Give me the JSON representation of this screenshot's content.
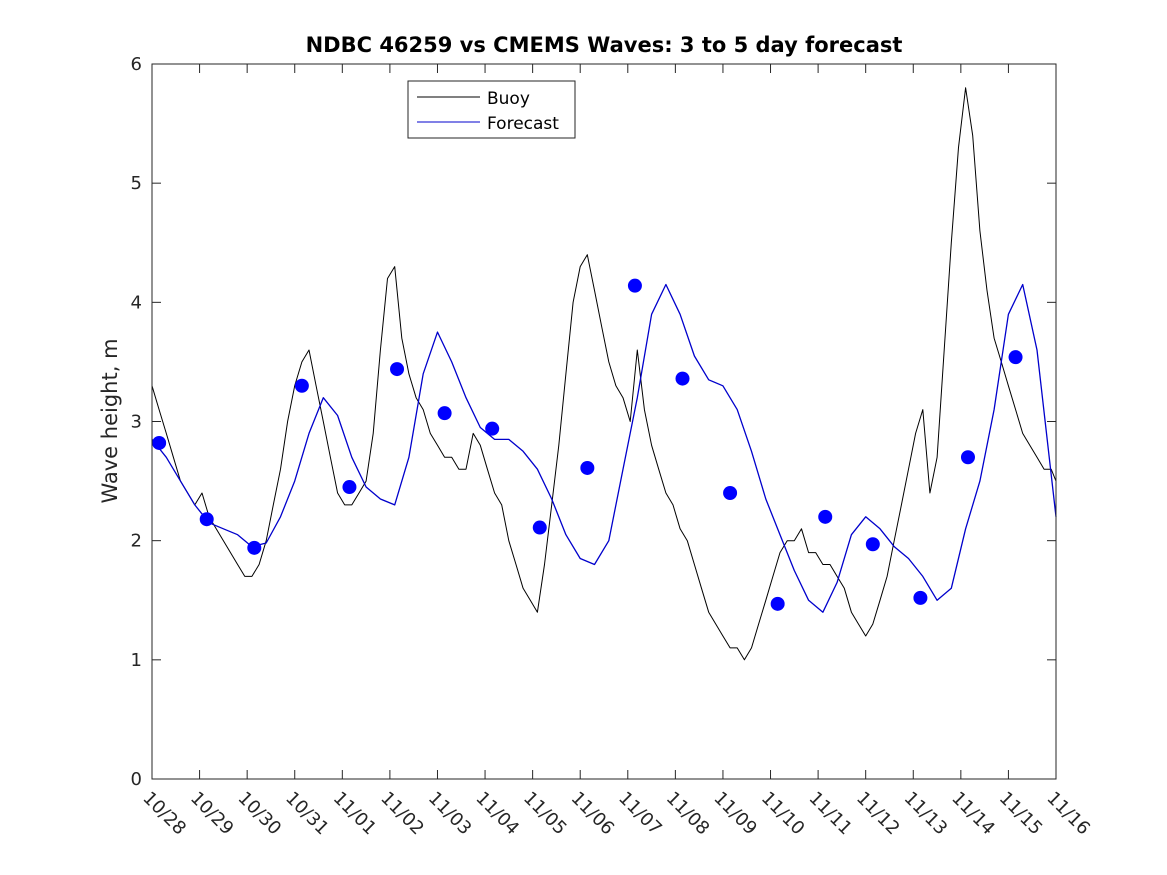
{
  "chart_data": {
    "type": "line",
    "title": "NDBC 46259 vs CMEMS Waves: 3 to 5 day forecast",
    "xlabel": "",
    "ylabel": "Wave height, m",
    "ylim": [
      0,
      6
    ],
    "xlim": [
      0,
      19
    ],
    "yticks": [
      "0",
      "1",
      "2",
      "3",
      "4",
      "5",
      "6"
    ],
    "xtick_labels": [
      "10/28",
      "10/29",
      "10/30",
      "10/31",
      "11/01",
      "11/02",
      "11/03",
      "11/04",
      "11/05",
      "11/06",
      "11/07",
      "11/08",
      "11/09",
      "11/10",
      "11/11",
      "11/12",
      "11/13",
      "11/14",
      "11/15",
      "11/16"
    ],
    "legend": {
      "location": "top-center",
      "entries": [
        {
          "label": "Buoy",
          "color": "#000000"
        },
        {
          "label": "Forecast",
          "color": "#0000cc"
        }
      ]
    },
    "series": [
      {
        "name": "Buoy",
        "color": "#000000",
        "x": [
          0,
          0.15,
          0.3,
          0.45,
          0.6,
          0.75,
          0.9,
          1.05,
          1.2,
          1.35,
          1.5,
          1.65,
          1.8,
          1.95,
          2.1,
          2.25,
          2.4,
          2.55,
          2.7,
          2.85,
          3.0,
          3.15,
          3.3,
          3.45,
          3.6,
          3.75,
          3.9,
          4.05,
          4.2,
          4.35,
          4.5,
          4.65,
          4.8,
          4.95,
          5.1,
          5.25,
          5.4,
          5.55,
          5.7,
          5.85,
          6.0,
          6.15,
          6.3,
          6.45,
          6.6,
          6.75,
          6.9,
          7.05,
          7.2,
          7.35,
          7.5,
          7.65,
          7.8,
          7.95,
          8.1,
          8.25,
          8.4,
          8.55,
          8.7,
          8.85,
          9.0,
          9.15,
          9.3,
          9.45,
          9.6,
          9.75,
          9.9,
          10.05,
          10.2,
          10.35,
          10.5,
          10.65,
          10.8,
          10.95,
          11.1,
          11.25,
          11.4,
          11.55,
          11.7,
          11.85,
          12.0,
          12.15,
          12.3,
          12.45,
          12.6,
          12.75,
          12.9,
          13.05,
          13.2,
          13.35,
          13.5,
          13.65,
          13.8,
          13.95,
          14.1,
          14.25,
          14.4,
          14.55,
          14.7,
          14.85,
          15.0,
          15.15,
          15.3,
          15.45,
          15.6,
          15.75,
          15.9,
          16.05,
          16.2,
          16.35,
          16.5,
          16.65,
          16.8,
          16.95,
          17.1,
          17.25,
          17.4,
          17.55,
          17.7,
          17.85,
          18.0,
          18.15,
          18.3,
          18.45,
          18.6,
          18.75,
          18.9,
          19.0
        ],
        "values": [
          3.3,
          3.1,
          2.9,
          2.7,
          2.5,
          2.4,
          2.3,
          2.4,
          2.2,
          2.1,
          2.0,
          1.9,
          1.8,
          1.7,
          1.7,
          1.8,
          2.0,
          2.3,
          2.6,
          3.0,
          3.3,
          3.5,
          3.6,
          3.3,
          3.0,
          2.7,
          2.4,
          2.3,
          2.3,
          2.4,
          2.5,
          2.9,
          3.6,
          4.2,
          4.3,
          3.7,
          3.4,
          3.2,
          3.1,
          2.9,
          2.8,
          2.7,
          2.7,
          2.6,
          2.6,
          2.9,
          2.8,
          2.6,
          2.4,
          2.3,
          2.0,
          1.8,
          1.6,
          1.5,
          1.4,
          1.8,
          2.3,
          2.8,
          3.4,
          4.0,
          4.3,
          4.4,
          4.1,
          3.8,
          3.5,
          3.3,
          3.2,
          3.0,
          3.6,
          3.1,
          2.8,
          2.6,
          2.4,
          2.3,
          2.1,
          2.0,
          1.8,
          1.6,
          1.4,
          1.3,
          1.2,
          1.1,
          1.1,
          1.0,
          1.1,
          1.3,
          1.5,
          1.7,
          1.9,
          2.0,
          2.0,
          2.1,
          1.9,
          1.9,
          1.8,
          1.8,
          1.7,
          1.6,
          1.4,
          1.3,
          1.2,
          1.3,
          1.5,
          1.7,
          2.0,
          2.3,
          2.6,
          2.9,
          3.1,
          2.4,
          2.7,
          3.6,
          4.5,
          5.3,
          5.8,
          5.4,
          4.6,
          4.1,
          3.7,
          3.5,
          3.3,
          3.1,
          2.9,
          2.8,
          2.7,
          2.6,
          2.6,
          2.5
        ]
      },
      {
        "name": "Forecast",
        "color": "#0000cc",
        "x": [
          0,
          0.3,
          0.6,
          0.9,
          1.2,
          1.5,
          1.8,
          2.1,
          2.4,
          2.7,
          3.0,
          3.3,
          3.6,
          3.9,
          4.2,
          4.5,
          4.8,
          5.1,
          5.4,
          5.7,
          6.0,
          6.3,
          6.6,
          6.9,
          7.2,
          7.5,
          7.8,
          8.1,
          8.4,
          8.7,
          9.0,
          9.3,
          9.6,
          9.9,
          10.2,
          10.5,
          10.8,
          11.1,
          11.4,
          11.7,
          12.0,
          12.3,
          12.6,
          12.9,
          13.2,
          13.5,
          13.8,
          14.1,
          14.4,
          14.7,
          15.0,
          15.3,
          15.6,
          15.9,
          16.2,
          16.5,
          16.8,
          17.1,
          17.4,
          17.7,
          18.0,
          18.3,
          18.6,
          19.0
        ],
        "values": [
          2.85,
          2.7,
          2.5,
          2.3,
          2.15,
          2.1,
          2.05,
          1.95,
          1.98,
          2.2,
          2.5,
          2.9,
          3.2,
          3.05,
          2.7,
          2.45,
          2.35,
          2.3,
          2.7,
          3.4,
          3.75,
          3.5,
          3.2,
          2.95,
          2.85,
          2.85,
          2.75,
          2.6,
          2.35,
          2.05,
          1.85,
          1.8,
          2.0,
          2.6,
          3.2,
          3.9,
          4.15,
          3.9,
          3.55,
          3.35,
          3.3,
          3.1,
          2.75,
          2.35,
          2.05,
          1.75,
          1.5,
          1.4,
          1.65,
          2.05,
          2.2,
          2.1,
          1.95,
          1.85,
          1.7,
          1.5,
          1.6,
          2.1,
          2.5,
          3.1,
          3.9,
          4.15,
          3.6,
          2.2
        ]
      },
      {
        "name": "Forecast (00Z markers)",
        "color": "#0000ff",
        "x": [
          0.15,
          1.15,
          2.15,
          3.15,
          4.15,
          5.15,
          6.15,
          7.15,
          8.15,
          9.15,
          10.15,
          11.15,
          12.15,
          13.15,
          14.15,
          15.15,
          16.15,
          17.15,
          18.15
        ],
        "values": [
          2.82,
          2.18,
          1.94,
          3.3,
          2.45,
          3.44,
          3.07,
          2.94,
          2.11,
          2.61,
          4.14,
          3.36,
          2.4,
          1.47,
          2.2,
          1.97,
          1.52,
          2.7,
          3.54
        ]
      }
    ]
  }
}
